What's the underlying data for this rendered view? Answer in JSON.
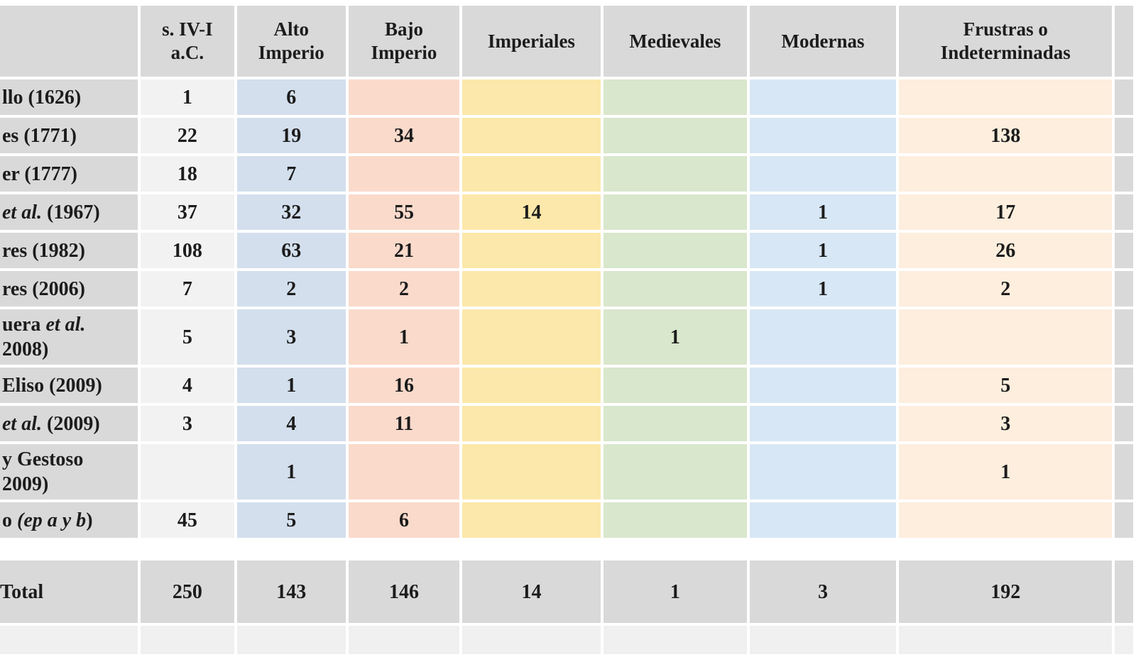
{
  "table": {
    "corner_label": "",
    "header_bg": "#d9d9d9",
    "text_color": "#1c1c1c",
    "columns": [
      {
        "id": "siv",
        "label": "s. IV-I\na.C.",
        "bg": "#f2f2f2"
      },
      {
        "id": "alto",
        "label": "Alto\nImperio",
        "bg": "#d3dfed"
      },
      {
        "id": "bajo",
        "label": "Bajo\nImperio",
        "bg": "#fadacb"
      },
      {
        "id": "imperiales",
        "label": "Imperiales",
        "bg": "#fce8aa"
      },
      {
        "id": "medievales",
        "label": "Medievales",
        "bg": "#d9e7cc"
      },
      {
        "id": "modernas",
        "label": "Modernas",
        "bg": "#d8e7f5"
      },
      {
        "id": "frustras",
        "label": "Frustras o\nIndeterminadas",
        "bg": "#fdeedd"
      }
    ],
    "rows": [
      {
        "segments": [
          {
            "text": "llo (1626)"
          }
        ],
        "values": [
          "1",
          "6",
          "",
          "",
          "",
          "",
          ""
        ]
      },
      {
        "segments": [
          {
            "text": "es (1771)"
          }
        ],
        "values": [
          "22",
          "19",
          "34",
          "",
          "",
          "",
          "138"
        ]
      },
      {
        "segments": [
          {
            "text": "er (1777)"
          }
        ],
        "values": [
          "18",
          "7",
          "",
          "",
          "",
          "",
          ""
        ]
      },
      {
        "segments": [
          {
            "text": "et al.",
            "italic": true
          },
          {
            "text": " (1967)"
          }
        ],
        "values": [
          "37",
          "32",
          "55",
          "14",
          "",
          "1",
          "17"
        ]
      },
      {
        "segments": [
          {
            "text": "res (1982)"
          }
        ],
        "values": [
          "108",
          "63",
          "21",
          "",
          "",
          "1",
          "26"
        ]
      },
      {
        "segments": [
          {
            "text": "res (2006)"
          }
        ],
        "values": [
          "7",
          "2",
          "2",
          "",
          "",
          "1",
          "2"
        ]
      },
      {
        "segments": [
          {
            "text": "uera "
          },
          {
            "text": "et al.",
            "italic": true
          },
          {
            "text": "\n2008)"
          }
        ],
        "values": [
          "5",
          "3",
          "1",
          "",
          "1",
          "",
          ""
        ],
        "tall": true
      },
      {
        "segments": [
          {
            "text": "Eliso (2009)"
          }
        ],
        "values": [
          "4",
          "1",
          "16",
          "",
          "",
          "",
          "5"
        ]
      },
      {
        "segments": [
          {
            "text": "et al.",
            "italic": true
          },
          {
            "text": " (2009)"
          }
        ],
        "values": [
          "3",
          "4",
          "11",
          "",
          "",
          "",
          "3"
        ]
      },
      {
        "segments": [
          {
            "text": "y Gestoso\n2009)"
          }
        ],
        "values": [
          "",
          "1",
          "",
          "",
          "",
          "",
          "1"
        ],
        "tall": true
      },
      {
        "segments": [
          {
            "text": "o "
          },
          {
            "text": "(ep a y b",
            "italic": true
          },
          {
            "text": ")"
          }
        ],
        "values": [
          "45",
          "5",
          "6",
          "",
          "",
          "",
          ""
        ]
      }
    ],
    "total_row": {
      "label": "Total",
      "values": [
        "250",
        "143",
        "146",
        "14",
        "1",
        "3",
        "192"
      ]
    }
  }
}
